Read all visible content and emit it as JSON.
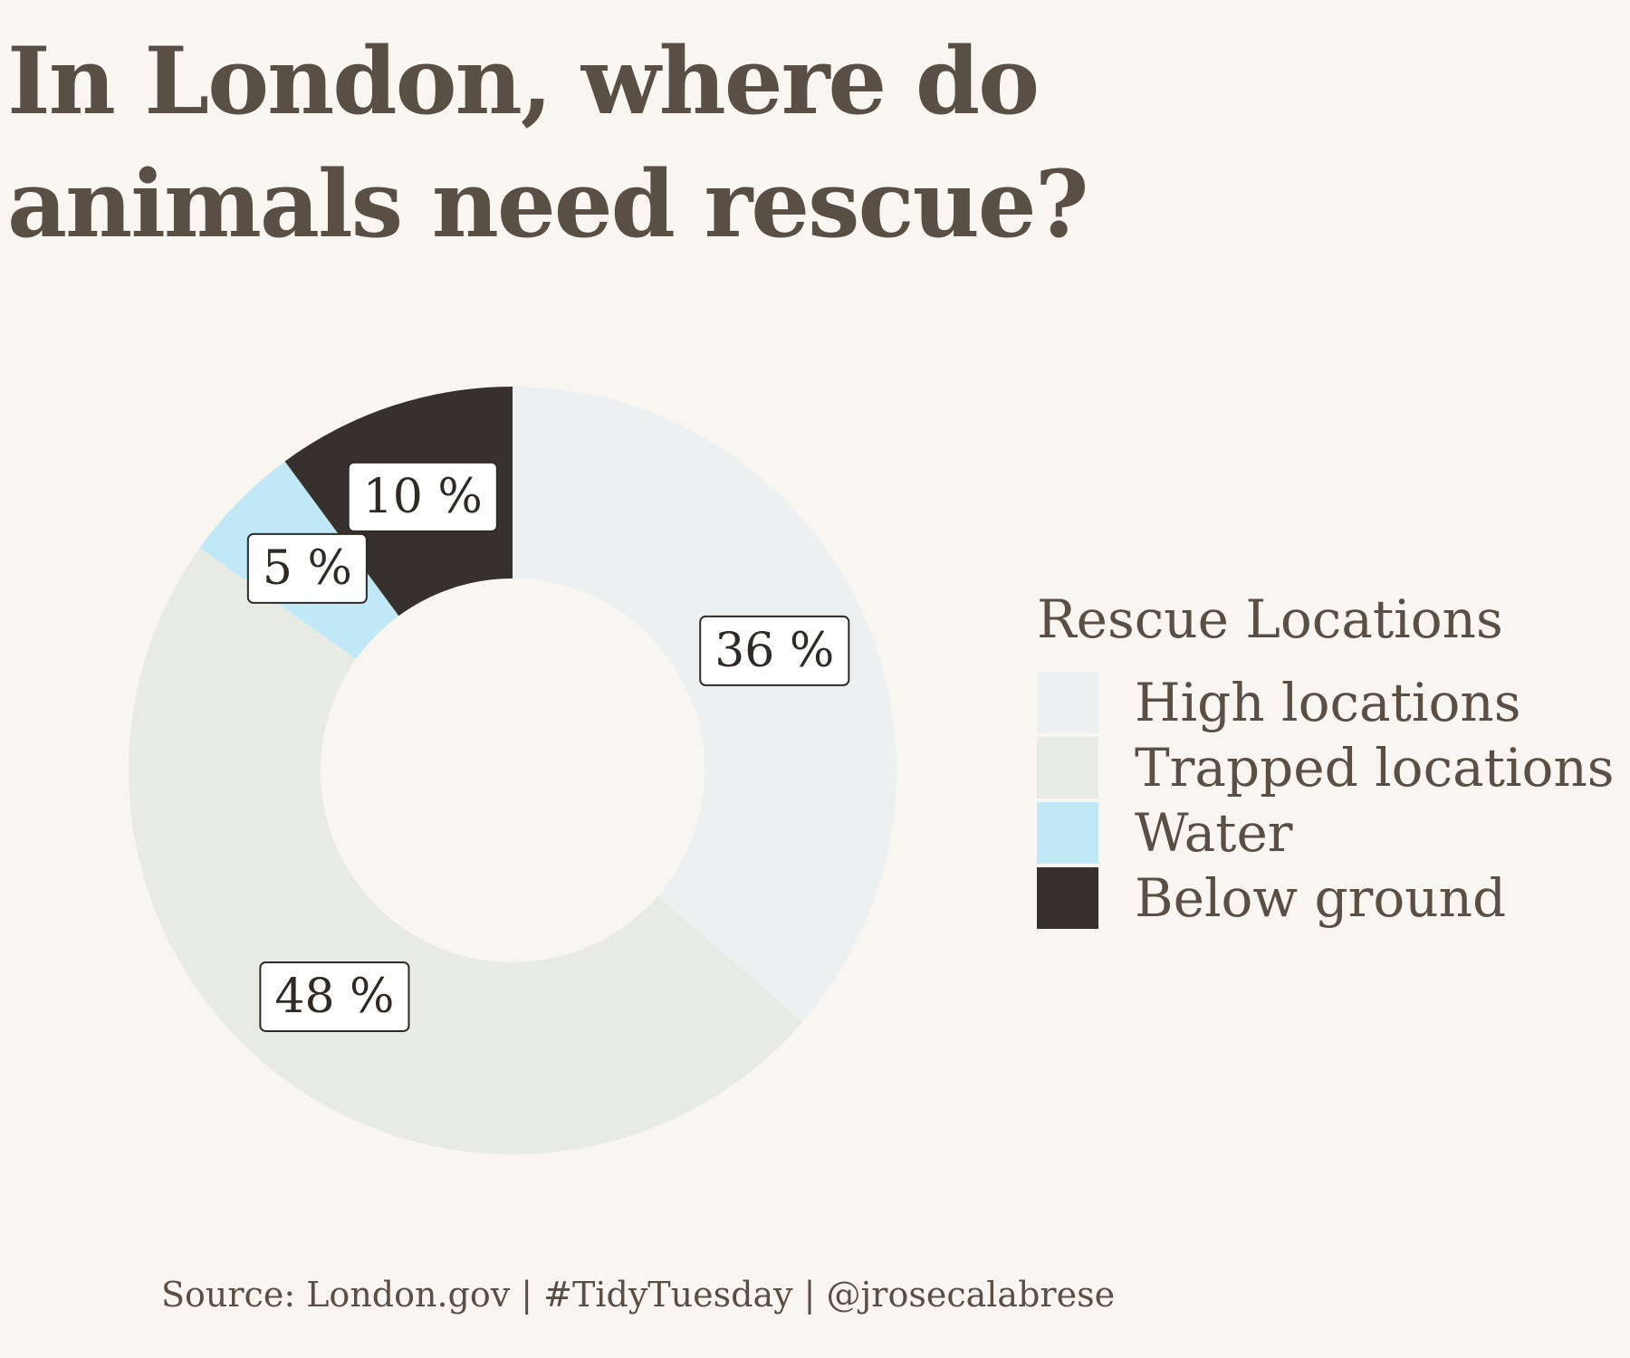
{
  "chart_data": {
    "type": "pie",
    "donut": true,
    "title": "In London, where do animals need rescue?",
    "categories": [
      "High locations",
      "Trapped locations",
      "Water",
      "Below ground"
    ],
    "values": [
      36,
      48,
      5,
      10
    ],
    "labels": [
      "36 %",
      "48 %",
      "5 %",
      "10 %"
    ],
    "colors": [
      "#ecf0f1",
      "#e8eae4",
      "#c0e8f6",
      "#36312e"
    ],
    "legend": {
      "title": "Rescue Locations",
      "position": "right"
    }
  },
  "caption": "Source: London.gov | #TidyTuesday | @jrosecalabrese",
  "colors": {
    "background": "#f9f6f2",
    "text": "#5a4f45",
    "label_text": "#2f2a26",
    "label_bg": "#ffffff"
  }
}
